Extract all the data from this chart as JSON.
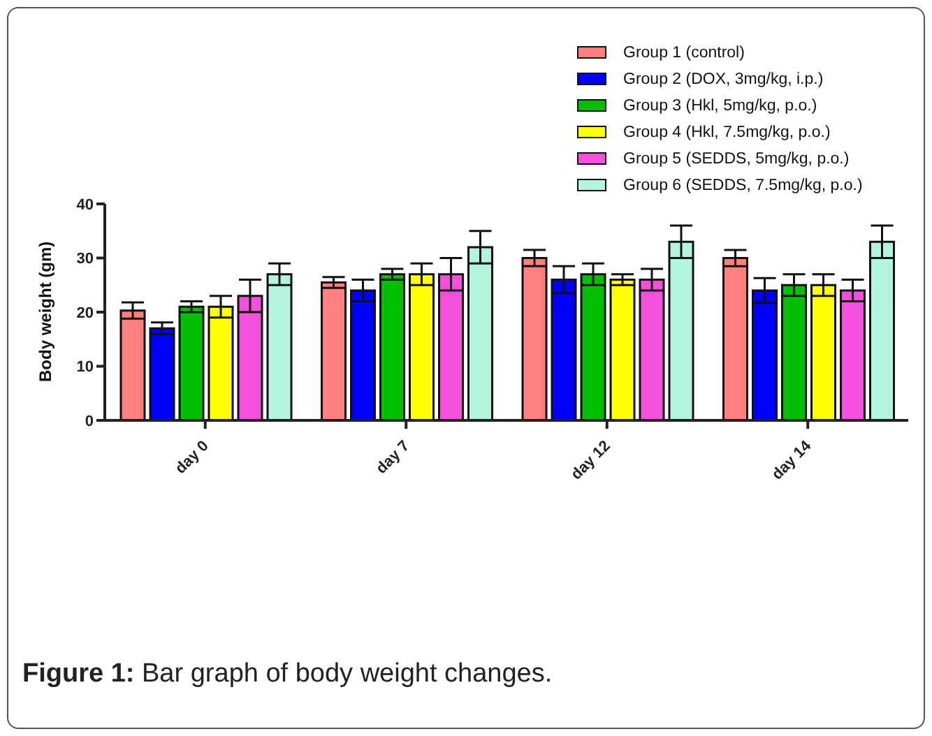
{
  "chart_data": {
    "type": "bar",
    "ylabel": "Body weight (gm)",
    "categories": [
      "day 0",
      "day 7",
      "day 12",
      "day 14"
    ],
    "series": [
      {
        "name": "Group 1 (control)",
        "color": "#ff7f7f",
        "values": [
          20.3,
          25.5,
          30,
          30
        ],
        "errors": [
          1.5,
          1,
          1.5,
          1.5
        ]
      },
      {
        "name": "Group 2 (DOX, 3mg/kg, i.p.)",
        "color": "#0000ff",
        "values": [
          17,
          24,
          26,
          24
        ],
        "errors": [
          1.1,
          2,
          2.5,
          2.3
        ]
      },
      {
        "name": "Group 3 (Hkl, 5mg/kg, p.o.)",
        "color": "#00c000",
        "values": [
          21,
          27,
          27,
          25
        ],
        "errors": [
          1,
          1,
          2,
          2
        ]
      },
      {
        "name": "Group 4 (Hkl, 7.5mg/kg, p.o.)",
        "color": "#ffff00",
        "values": [
          21,
          27,
          26,
          25
        ],
        "errors": [
          2,
          2,
          1,
          2
        ]
      },
      {
        "name": "Group 5 (SEDDS, 5mg/kg, p.o.)",
        "color": "#f550dc",
        "values": [
          23,
          27,
          26,
          24
        ],
        "errors": [
          3,
          3,
          2,
          2
        ]
      },
      {
        "name": "Group 6 (SEDDS, 7.5mg/kg, p.o.)",
        "color": "#b3f5dc",
        "values": [
          27,
          32,
          33,
          33
        ],
        "errors": [
          2,
          3,
          3,
          3
        ]
      }
    ],
    "ylim": [
      0,
      40
    ],
    "yticks": [
      0,
      10,
      20,
      30,
      40
    ],
    "legend": "top right",
    "annotations": [
      "Figure 1: Bar graph of body weight changes."
    ]
  }
}
